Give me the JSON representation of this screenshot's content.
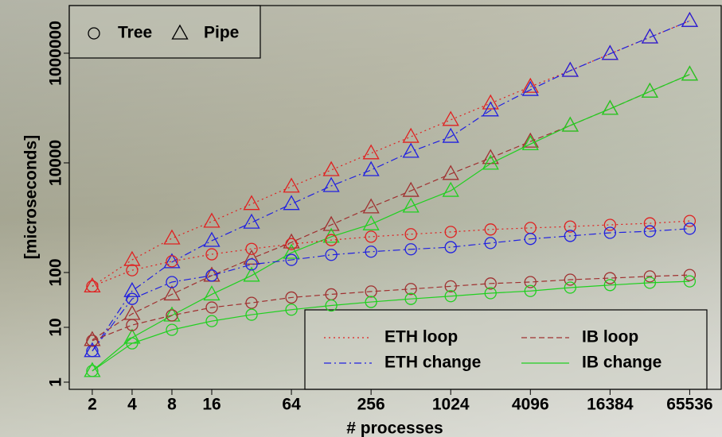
{
  "chart_data": {
    "type": "line",
    "x_label": "# processes",
    "y_label": "[microseconds]",
    "xscale": "log",
    "yscale": "log",
    "x": [
      2,
      4,
      8,
      16,
      32,
      64,
      128,
      256,
      512,
      1024,
      2048,
      4096,
      8192,
      16384,
      32768,
      65536
    ],
    "xlim": [
      1.34,
      115000
    ],
    "ylim": [
      0.74,
      7400000
    ],
    "xticks": [
      2,
      4,
      8,
      16,
      64,
      256,
      1024,
      4096,
      16384,
      65536
    ],
    "yticks": [
      1,
      10,
      100,
      10000,
      1000000
    ],
    "lines": [
      {
        "name": "ETH loop",
        "color": "#e02020",
        "dash": "dotted"
      },
      {
        "name": "ETH change",
        "color": "#2020e0",
        "dash": "dashdot"
      },
      {
        "name": "IB loop",
        "color": "#a03030",
        "dash": "dashed"
      },
      {
        "name": "IB change",
        "color": "#20d020",
        "dash": "solid"
      }
    ],
    "markers": [
      {
        "name": "Tree",
        "shape": "circle"
      },
      {
        "name": "Pipe",
        "shape": "triangle"
      }
    ],
    "series": [
      {
        "line": 0,
        "marker": 1,
        "values": [
          56,
          170,
          420,
          850,
          1780,
          3700,
          7400,
          15000,
          30000,
          61000,
          122000,
          245000,
          480000,
          975000,
          1950000,
          3900000
        ]
      },
      {
        "line": 1,
        "marker": 1,
        "values": [
          3.7,
          46,
          155,
          380,
          815,
          1780,
          3800,
          7400,
          16000,
          30000,
          91000,
          215000,
          480000,
          975000,
          1950000,
          3900000
        ]
      },
      {
        "line": 2,
        "marker": 1,
        "values": [
          5.9,
          17.6,
          40,
          88,
          180,
          355,
          740,
          1550,
          3100,
          6300,
          12300,
          24500,
          48000,
          97000,
          200000,
          410000
        ]
      },
      {
        "line": 3,
        "marker": 1,
        "values": [
          1.6,
          6.5,
          16.5,
          40,
          88,
          230,
          450,
          760,
          1600,
          3100,
          9700,
          22000,
          48000,
          97000,
          200000,
          410000
        ]
      },
      {
        "line": 0,
        "marker": 0,
        "values": [
          56,
          110,
          160,
          215,
          270,
          330,
          390,
          450,
          500,
          550,
          610,
          650,
          690,
          740,
          790,
          870
        ]
      },
      {
        "line": 1,
        "marker": 0,
        "values": [
          3.7,
          33,
          67,
          88,
          140,
          170,
          210,
          240,
          265,
          290,
          345,
          410,
          465,
          530,
          565,
          630
        ]
      },
      {
        "line": 2,
        "marker": 0,
        "values": [
          5.7,
          11,
          16.5,
          23,
          28,
          35,
          40,
          45,
          50,
          56,
          63,
          67,
          74,
          79,
          85,
          90
        ]
      },
      {
        "line": 3,
        "marker": 0,
        "values": [
          1.6,
          5.1,
          9,
          13,
          17,
          21,
          25,
          29,
          33,
          37,
          42,
          46,
          53,
          59,
          65,
          69
        ]
      }
    ]
  }
}
